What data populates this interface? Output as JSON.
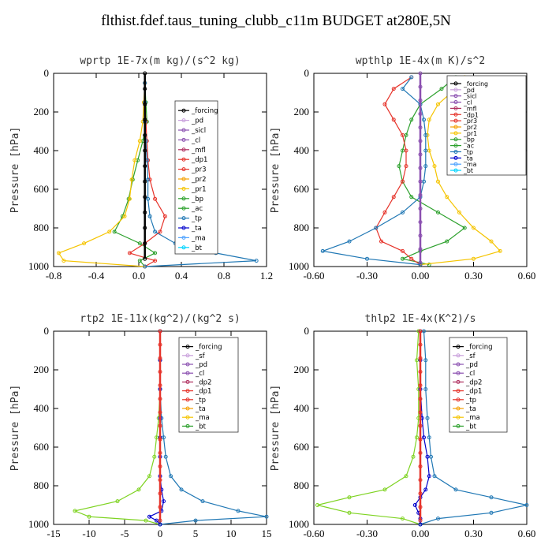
{
  "title": "flthist.fdef.taus_tuning_clubb_c11m  BUDGET at280E,5N",
  "chart_data": [
    {
      "type": "line",
      "title": "wprtp  1E-7x(m kg)/(s^2 kg)",
      "ylabel": "Pressure [hPa]",
      "ylim": [
        1000,
        0
      ],
      "xlim": [
        -0.9,
        1.2
      ],
      "yticks": [
        "0",
        "200",
        "400",
        "600",
        "800",
        "1000"
      ],
      "xticks": [
        "-0.8",
        "-0.4",
        "0.0",
        "0.4",
        "0.8",
        "1.2"
      ],
      "legend": [
        "_forcing",
        "_pd",
        "_sicl",
        "_cl",
        "_mfl",
        "_dp1",
        "_pr3",
        "_pr2",
        "_pr1",
        "_bp",
        "_ac",
        "_tp",
        "_ta",
        "_ma",
        "_bt"
      ],
      "series": [
        {
          "name": "_ac",
          "color": "#2ca02c",
          "x": [
            0,
            0.01,
            0.02,
            -0.02,
            -0.07,
            -0.12,
            -0.16,
            -0.22,
            -0.3,
            -0.05,
            0.1,
            -0.05,
            0
          ],
          "y": [
            50,
            150,
            250,
            350,
            450,
            550,
            650,
            740,
            820,
            880,
            930,
            970,
            1000
          ]
        },
        {
          "name": "_pr1",
          "color": "#f5c400",
          "x": [
            0,
            -0.01,
            -0.02,
            -0.05,
            -0.1,
            -0.13,
            -0.15,
            -0.2,
            -0.35,
            -0.6,
            -0.85,
            -0.8,
            0
          ],
          "y": [
            50,
            150,
            250,
            350,
            450,
            550,
            650,
            740,
            820,
            880,
            930,
            970,
            1000
          ]
        },
        {
          "name": "_dp1",
          "color": "#e6332a",
          "x": [
            0,
            0,
            0.01,
            0.02,
            0.03,
            0.05,
            0.1,
            0.2,
            0.15,
            0.0,
            -0.15,
            0.1,
            0
          ],
          "y": [
            50,
            150,
            250,
            350,
            450,
            550,
            650,
            740,
            820,
            880,
            930,
            970,
            1000
          ]
        },
        {
          "name": "_tp",
          "color": "#1f77b4",
          "x": [
            0,
            0,
            0,
            0.01,
            0.02,
            0.03,
            0.03,
            0.05,
            0.1,
            0.3,
            0.7,
            1.1,
            0
          ],
          "y": [
            50,
            150,
            250,
            350,
            450,
            550,
            650,
            740,
            820,
            880,
            930,
            970,
            1000
          ]
        },
        {
          "name": "_forcing",
          "color": "#000000",
          "x": [
            0,
            0,
            0,
            0,
            0,
            0,
            0,
            0,
            0,
            0,
            0,
            0,
            0
          ],
          "y": [
            0,
            80,
            160,
            240,
            320,
            400,
            480,
            560,
            640,
            720,
            800,
            880,
            960
          ]
        }
      ]
    },
    {
      "type": "line",
      "title": "wpthlp  1E-4x(m K)/s^2",
      "ylabel": "Pressure [hPa]",
      "ylim": [
        1000,
        0
      ],
      "xlim": [
        -0.6,
        0.6
      ],
      "yticks": [
        "0",
        "200",
        "400",
        "600",
        "800",
        "1000"
      ],
      "xticks": [
        "-0.60",
        "-0.30",
        "0.00",
        "0.30",
        "0.60"
      ],
      "legend": [
        "_forcing",
        "_pd",
        "_sicl",
        "_cl",
        "_mfl",
        "_dp1",
        "_pr3",
        "_pr2",
        "_pr1",
        "_bp",
        "_ac",
        "_tp",
        "_ta",
        "_ma",
        "_bt"
      ],
      "series": [
        {
          "name": "_ac",
          "color": "#2ca02c",
          "x": [
            0.2,
            0.12,
            0.0,
            -0.05,
            -0.08,
            -0.1,
            -0.12,
            -0.1,
            -0.05,
            0.1,
            0.25,
            0.15,
            0.0,
            -0.1,
            0.05
          ],
          "y": [
            20,
            80,
            160,
            240,
            320,
            400,
            480,
            560,
            640,
            720,
            800,
            870,
            920,
            960,
            990
          ]
        },
        {
          "name": "_pr1",
          "color": "#f5c400",
          "x": [
            0.25,
            0.2,
            0.1,
            0.05,
            0.04,
            0.05,
            0.08,
            0.1,
            0.15,
            0.22,
            0.3,
            0.4,
            0.45,
            0.3,
            0.0
          ],
          "y": [
            20,
            80,
            160,
            240,
            320,
            400,
            480,
            560,
            640,
            720,
            800,
            870,
            920,
            960,
            990
          ]
        },
        {
          "name": "_dp1",
          "color": "#e6332a",
          "x": [
            -0.05,
            -0.15,
            -0.2,
            -0.15,
            -0.1,
            -0.08,
            -0.08,
            -0.1,
            -0.15,
            -0.2,
            -0.25,
            -0.22,
            -0.1,
            -0.05,
            0.0
          ],
          "y": [
            20,
            80,
            160,
            240,
            320,
            400,
            480,
            560,
            640,
            720,
            800,
            870,
            920,
            960,
            990
          ]
        },
        {
          "name": "_tp",
          "color": "#1f77b4",
          "x": [
            -0.05,
            -0.1,
            0.0,
            0.02,
            0.03,
            0.03,
            0.03,
            0.02,
            0.0,
            -0.1,
            -0.25,
            -0.4,
            -0.55,
            -0.3,
            0.0
          ],
          "y": [
            20,
            80,
            160,
            240,
            320,
            400,
            480,
            560,
            640,
            720,
            800,
            870,
            920,
            960,
            990
          ]
        },
        {
          "name": "_sicl",
          "color": "#8a4fb0",
          "x": [
            0,
            0,
            0,
            0,
            0,
            0,
            0,
            0,
            0,
            0,
            0,
            0,
            0,
            0,
            0
          ],
          "y": [
            0,
            70,
            140,
            210,
            280,
            350,
            420,
            490,
            560,
            630,
            700,
            770,
            840,
            910,
            980
          ]
        }
      ]
    },
    {
      "type": "line",
      "title": "rtp2  1E-11x(kg^2)/(kg^2 s)",
      "ylabel": "Pressure [hPa]",
      "ylim": [
        1000,
        0
      ],
      "xlim": [
        -15,
        15
      ],
      "yticks": [
        "0",
        "200",
        "400",
        "600",
        "800",
        "1000"
      ],
      "xticks": [
        "-15",
        "-10",
        "-5",
        "0",
        "5",
        "10",
        "15"
      ],
      "legend": [
        "_forcing",
        "_sf",
        "_pd",
        "_cl",
        "_dp2",
        "_dp1",
        "_tp",
        "_ta",
        "_ma",
        "_bt"
      ],
      "series": [
        {
          "name": "_dp1",
          "color": "#7ed321",
          "x": [
            0,
            0,
            0,
            -0.2,
            -0.5,
            -0.8,
            -1.5,
            -3,
            -6,
            -12,
            -10,
            -2,
            0
          ],
          "y": [
            0,
            150,
            300,
            450,
            550,
            650,
            750,
            820,
            880,
            930,
            960,
            980,
            1000
          ]
        },
        {
          "name": "_tp",
          "color": "#1f77b4",
          "x": [
            0,
            0,
            0,
            0.2,
            0.5,
            0.8,
            1.5,
            3,
            6,
            11,
            15,
            5,
            0
          ],
          "y": [
            0,
            150,
            300,
            450,
            550,
            650,
            750,
            820,
            880,
            930,
            960,
            980,
            1000
          ]
        },
        {
          "name": "_ta",
          "color": "#0000cc",
          "x": [
            0,
            0,
            0,
            0,
            0,
            0,
            0,
            0.2,
            0.5,
            0.2,
            -1.5,
            -0.5,
            0
          ],
          "y": [
            0,
            150,
            300,
            450,
            550,
            650,
            750,
            820,
            880,
            930,
            960,
            980,
            1000
          ]
        },
        {
          "name": "_forcing",
          "color": "#e6332a",
          "x": [
            0,
            0,
            0,
            0,
            0,
            0,
            0,
            0,
            0,
            0,
            0,
            0,
            0,
            0,
            0
          ],
          "y": [
            0,
            70,
            140,
            210,
            280,
            350,
            420,
            490,
            560,
            630,
            700,
            770,
            840,
            910,
            980
          ]
        }
      ]
    },
    {
      "type": "line",
      "title": "thlp2  1E-4x(K^2)/s",
      "ylabel": "Pressure [hPa]",
      "ylim": [
        1000,
        0
      ],
      "xlim": [
        -0.6,
        0.6
      ],
      "yticks": [
        "0",
        "200",
        "400",
        "600",
        "800",
        "1000"
      ],
      "xticks": [
        "-0.60",
        "-0.30",
        "0.00",
        "0.30",
        "0.60"
      ],
      "legend": [
        "_forcing",
        "_sf",
        "_pd",
        "_cl",
        "_dp2",
        "_dp1",
        "_tp",
        "_ta",
        "_ma",
        "_bt"
      ],
      "series": [
        {
          "name": "_dp1",
          "color": "#7ed321",
          "x": [
            -0.01,
            -0.02,
            -0.01,
            -0.01,
            -0.02,
            -0.04,
            -0.08,
            -0.2,
            -0.4,
            -0.58,
            -0.4,
            -0.1,
            0
          ],
          "y": [
            0,
            150,
            300,
            450,
            550,
            650,
            750,
            820,
            860,
            900,
            940,
            970,
            1000
          ]
        },
        {
          "name": "_tp",
          "color": "#1f77b4",
          "x": [
            0.02,
            0.03,
            0.03,
            0.04,
            0.05,
            0.06,
            0.08,
            0.2,
            0.4,
            0.6,
            0.4,
            0.1,
            0
          ],
          "y": [
            0,
            150,
            300,
            450,
            550,
            650,
            750,
            820,
            860,
            900,
            940,
            970,
            1000
          ]
        },
        {
          "name": "_ta",
          "color": "#0000cc",
          "x": [
            0,
            0,
            0,
            0.01,
            0.02,
            0.04,
            0.05,
            0.03,
            0.0,
            -0.03,
            -0.01,
            0,
            0
          ],
          "y": [
            0,
            150,
            300,
            450,
            550,
            650,
            750,
            820,
            860,
            900,
            940,
            970,
            1000
          ]
        },
        {
          "name": "_forcing",
          "color": "#e6332a",
          "x": [
            0,
            0,
            0,
            0,
            0,
            0,
            0,
            0,
            0,
            0,
            0,
            0,
            0,
            0,
            0
          ],
          "y": [
            0,
            70,
            140,
            210,
            280,
            350,
            420,
            490,
            560,
            630,
            700,
            770,
            840,
            910,
            980
          ]
        }
      ]
    }
  ]
}
